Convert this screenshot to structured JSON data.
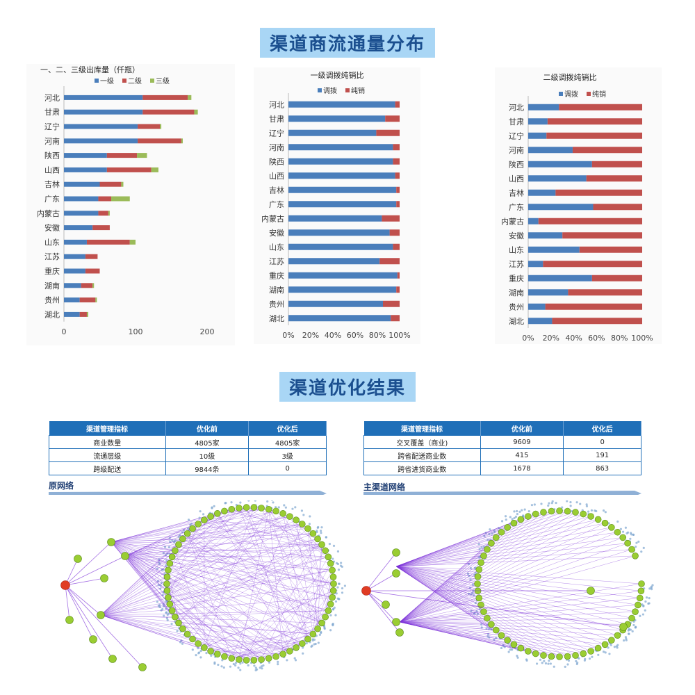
{
  "section1_title": "渠道商流通量分布",
  "section2_title": "渠道优化结果",
  "colors": {
    "level1": "#4a7ebb",
    "level2": "#c0504d",
    "level3": "#9bbb59",
    "header": "#1f6fb8",
    "banner_bg": "#a9d6f5",
    "banner_text": "#1b4f8f",
    "node": "#9acd32",
    "node_root": "#e03c24",
    "link": "#7b2fd8"
  },
  "provinces": [
    "河北",
    "甘肃",
    "辽宁",
    "河南",
    "陕西",
    "山西",
    "吉林",
    "广东",
    "内蒙古",
    "安徽",
    "山东",
    "江苏",
    "重庆",
    "湖南",
    "贵州",
    "湖北"
  ],
  "chart_data": [
    {
      "type": "bar",
      "subtype": "stacked-horizontal",
      "title": "一、二、三级出库量（仟瓶）",
      "categories": [
        "河北",
        "甘肃",
        "辽宁",
        "河南",
        "陕西",
        "山西",
        "吉林",
        "广东",
        "内蒙古",
        "安徽",
        "山东",
        "江苏",
        "重庆",
        "湖南",
        "贵州",
        "湖北"
      ],
      "series": [
        {
          "name": "一级",
          "values": [
            110,
            110,
            103,
            103,
            60,
            60,
            50,
            48,
            48,
            40,
            32,
            30,
            30,
            24,
            22,
            22
          ]
        },
        {
          "name": "二级",
          "values": [
            63,
            72,
            31,
            61,
            42,
            62,
            30,
            18,
            14,
            24,
            60,
            17,
            20,
            16,
            22,
            10
          ]
        },
        {
          "name": "三级",
          "values": [
            5,
            5,
            2,
            2,
            14,
            10,
            3,
            26,
            2,
            0,
            8,
            0,
            0,
            2,
            2,
            2
          ]
        }
      ],
      "xlim": [
        0,
        200
      ],
      "xticks": [
        0,
        100,
        200
      ],
      "legend": "top"
    },
    {
      "type": "bar",
      "subtype": "percent-stacked-horizontal",
      "title": "一级调拨纯销比",
      "categories": [
        "河北",
        "甘肃",
        "辽宁",
        "河南",
        "陕西",
        "山西",
        "吉林",
        "广东",
        "内蒙古",
        "安徽",
        "山东",
        "江苏",
        "重庆",
        "湖南",
        "贵州",
        "湖北"
      ],
      "series": [
        {
          "name": "调拨",
          "values": [
            96,
            87,
            79,
            94,
            94,
            96,
            97,
            97,
            84,
            91,
            94,
            82,
            98,
            97,
            85,
            92
          ]
        },
        {
          "name": "纯销",
          "values": [
            4,
            13,
            21,
            6,
            6,
            4,
            3,
            3,
            16,
            9,
            6,
            18,
            2,
            3,
            15,
            8
          ]
        }
      ],
      "xticks": [
        "0%",
        "20%",
        "40%",
        "60%",
        "80%",
        "100%"
      ],
      "legend": "top"
    },
    {
      "type": "bar",
      "subtype": "percent-stacked-horizontal",
      "title": "二级调拨纯销比",
      "categories": [
        "河北",
        "甘肃",
        "辽宁",
        "河南",
        "陕西",
        "山西",
        "吉林",
        "广东",
        "内蒙古",
        "安徽",
        "山东",
        "江苏",
        "重庆",
        "湖南",
        "贵州",
        "湖北"
      ],
      "series": [
        {
          "name": "调拨",
          "values": [
            27,
            17,
            16,
            39,
            56,
            51,
            24,
            57,
            9,
            30,
            45,
            13,
            56,
            35,
            15,
            21
          ]
        },
        {
          "name": "纯销",
          "values": [
            73,
            83,
            84,
            61,
            44,
            49,
            76,
            43,
            91,
            70,
            55,
            87,
            44,
            65,
            85,
            79
          ]
        }
      ],
      "xticks": [
        "0%",
        "20%",
        "40%",
        "60%",
        "80%",
        "100%"
      ],
      "legend": "top"
    }
  ],
  "table_left": {
    "headers": [
      "渠道管理指标",
      "优化前",
      "优化后"
    ],
    "rows": [
      [
        "商业数量",
        "4805家",
        "4805家"
      ],
      [
        "流通层级",
        "10级",
        "3级"
      ],
      [
        "跨级配送",
        "9844条",
        "0"
      ]
    ]
  },
  "table_right": {
    "headers": [
      "渠道管理指标",
      "优化前",
      "优化后"
    ],
    "rows": [
      [
        "交叉覆盖（商业)",
        "9609",
        "0"
      ],
      [
        "跨省配送商业数",
        "415",
        "191"
      ],
      [
        "跨省进货商业数",
        "1678",
        "863"
      ]
    ]
  },
  "network_left": {
    "label": "原网络"
  },
  "network_right": {
    "label": "主渠道网络"
  }
}
